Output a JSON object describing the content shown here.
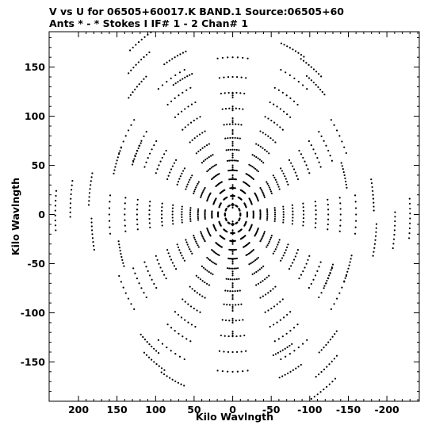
{
  "chart_data": {
    "type": "scatter",
    "title": "V vs U for 06505+60017.K BAND.1   Source:06505+60",
    "subtitle": "Ants * - *     Stokes I  IF# 1 - 2  Chan# 1",
    "xlabel": "Kilo Wavlngth",
    "ylabel": "Kilo Wavlngth",
    "xlim": [
      238,
      -242
    ],
    "ylim": [
      -190,
      186
    ],
    "x_ticks": [
      200,
      150,
      100,
      50,
      0,
      -50,
      -100,
      -150,
      -200
    ],
    "y_ticks": [
      150,
      100,
      50,
      0,
      -50,
      -100,
      -150
    ],
    "x_tick_labels": [
      "200",
      "150",
      "100",
      "50",
      "0",
      "-50",
      "-100",
      "-150",
      "-200"
    ],
    "y_tick_labels": [
      "150",
      "100",
      "50",
      "0",
      "-50",
      "-100",
      "-150"
    ],
    "grid": false,
    "marker_color": "#000000",
    "series": [
      {
        "pattern": "uv-coverage",
        "baseline_angles_deg": [
          90,
          60,
          30,
          0,
          -30,
          -60,
          -90,
          -120,
          -150,
          180,
          150,
          120
        ],
        "track_radii": [
          10,
          19,
          27,
          36,
          45,
          55,
          66,
          78,
          92,
          108,
          124,
          140,
          160
        ],
        "track_half_span_deg": 7,
        "spoke_points": [
          {
            "u": 0,
            "v": 121
          },
          {
            "u": 0,
            "v": 108
          },
          {
            "u": 0,
            "v": 96
          },
          {
            "u": 0,
            "v": 84
          },
          {
            "u": 0,
            "v": 72
          },
          {
            "u": 0,
            "v": 60
          },
          {
            "u": 0,
            "v": 48
          },
          {
            "u": 0,
            "v": 38
          },
          {
            "u": 0,
            "v": 28
          },
          {
            "u": 0,
            "v": 18
          },
          {
            "u": 0,
            "v": 9
          },
          {
            "u": 0,
            "v": -9
          },
          {
            "u": 0,
            "v": -18
          },
          {
            "u": 0,
            "v": -28
          },
          {
            "u": 0,
            "v": -38
          },
          {
            "u": 0,
            "v": -48
          },
          {
            "u": 0,
            "v": -60
          },
          {
            "u": 0,
            "v": -72
          },
          {
            "u": 0,
            "v": -84
          },
          {
            "u": 0,
            "v": -96
          },
          {
            "u": 0,
            "v": -108
          },
          {
            "u": 0,
            "v": -121
          }
        ],
        "outer_arcs": [
          {
            "u": 118,
            "v": 178
          },
          {
            "u": 122,
            "v": 155
          },
          {
            "u": 124,
            "v": 130
          },
          {
            "u": 75,
            "v": 160
          },
          {
            "u": 65,
            "v": 138
          },
          {
            "u": -78,
            "v": 168
          },
          {
            "u": -102,
            "v": 150
          },
          {
            "u": -108,
            "v": 132
          },
          {
            "u": -118,
            "v": -178
          },
          {
            "u": -122,
            "v": -155
          },
          {
            "u": -124,
            "v": -130
          },
          {
            "u": -75,
            "v": -160
          },
          {
            "u": -65,
            "v": -138
          },
          {
            "u": 78,
            "v": -168
          },
          {
            "u": 102,
            "v": -150
          },
          {
            "u": 108,
            "v": -132
          },
          {
            "u": 230,
            "v": 4
          },
          {
            "u": 210,
            "v": 16
          },
          {
            "u": 185,
            "v": 26
          },
          {
            "u": -230,
            "v": -4
          },
          {
            "u": -210,
            "v": -16
          },
          {
            "u": -185,
            "v": -26
          },
          {
            "u": 150,
            "v": 55
          },
          {
            "u": 125,
            "v": 62
          },
          {
            "u": -150,
            "v": -55
          },
          {
            "u": -125,
            "v": -62
          },
          {
            "u": -182,
            "v": 20
          },
          {
            "u": -145,
            "v": 40
          },
          {
            "u": 182,
            "v": -20
          },
          {
            "u": 145,
            "v": -40
          }
        ]
      }
    ]
  }
}
